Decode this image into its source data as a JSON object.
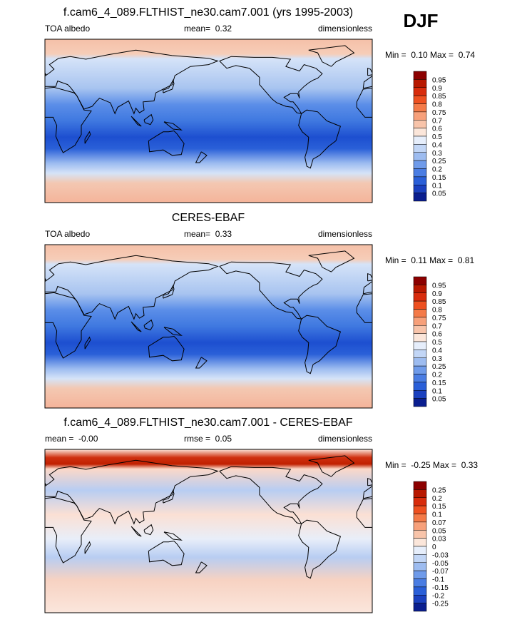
{
  "season": "DJF",
  "colorbar_colors": [
    "#8c0000",
    "#b81800",
    "#d82c0c",
    "#ee5020",
    "#f47a48",
    "#f7a07a",
    "#f8c4aa",
    "#fbe6da",
    "#e6eefb",
    "#c2d6f6",
    "#9dbcf0",
    "#6f9bea",
    "#4a7de3",
    "#2a5fd8",
    "#1a40bf",
    "#0a1e8f"
  ],
  "panels": [
    {
      "title": "f.cam6_4_089.FLTHIST_ne30.cam7.001 (yrs 1995-2003)",
      "left": "TOA albedo",
      "center": "mean=  0.32",
      "right": "dimensionless",
      "minmax": "Min =  0.10 Max =  0.74",
      "colorbar_labels": [
        "0.95",
        "0.9",
        "0.85",
        "0.8",
        "0.75",
        "0.7",
        "0.6",
        "0.5",
        "0.4",
        "0.3",
        "0.25",
        "0.2",
        "0.15",
        "0.1",
        "0.05"
      ]
    },
    {
      "title": "CERES-EBAF",
      "left": "TOA albedo",
      "center": "mean=  0.33",
      "right": "dimensionless",
      "minmax": "Min =  0.11 Max =  0.81",
      "colorbar_labels": [
        "0.95",
        "0.9",
        "0.85",
        "0.8",
        "0.75",
        "0.7",
        "0.6",
        "0.5",
        "0.4",
        "0.3",
        "0.25",
        "0.2",
        "0.15",
        "0.1",
        "0.05"
      ]
    },
    {
      "title": "f.cam6_4_089.FLTHIST_ne30.cam7.001 - CERES-EBAF",
      "left": "mean =  -0.00",
      "center": "rmse =  0.05",
      "right": "dimensionless",
      "minmax": "Min =  -0.25 Max =  0.33",
      "colorbar_labels": [
        "0.25",
        "0.2",
        "0.15",
        "0.1",
        "0.07",
        "0.05",
        "0.03",
        "0",
        "-0.03",
        "-0.05",
        "-0.07",
        "-0.1",
        "-0.15",
        "-0.2",
        "-0.25"
      ]
    }
  ]
}
